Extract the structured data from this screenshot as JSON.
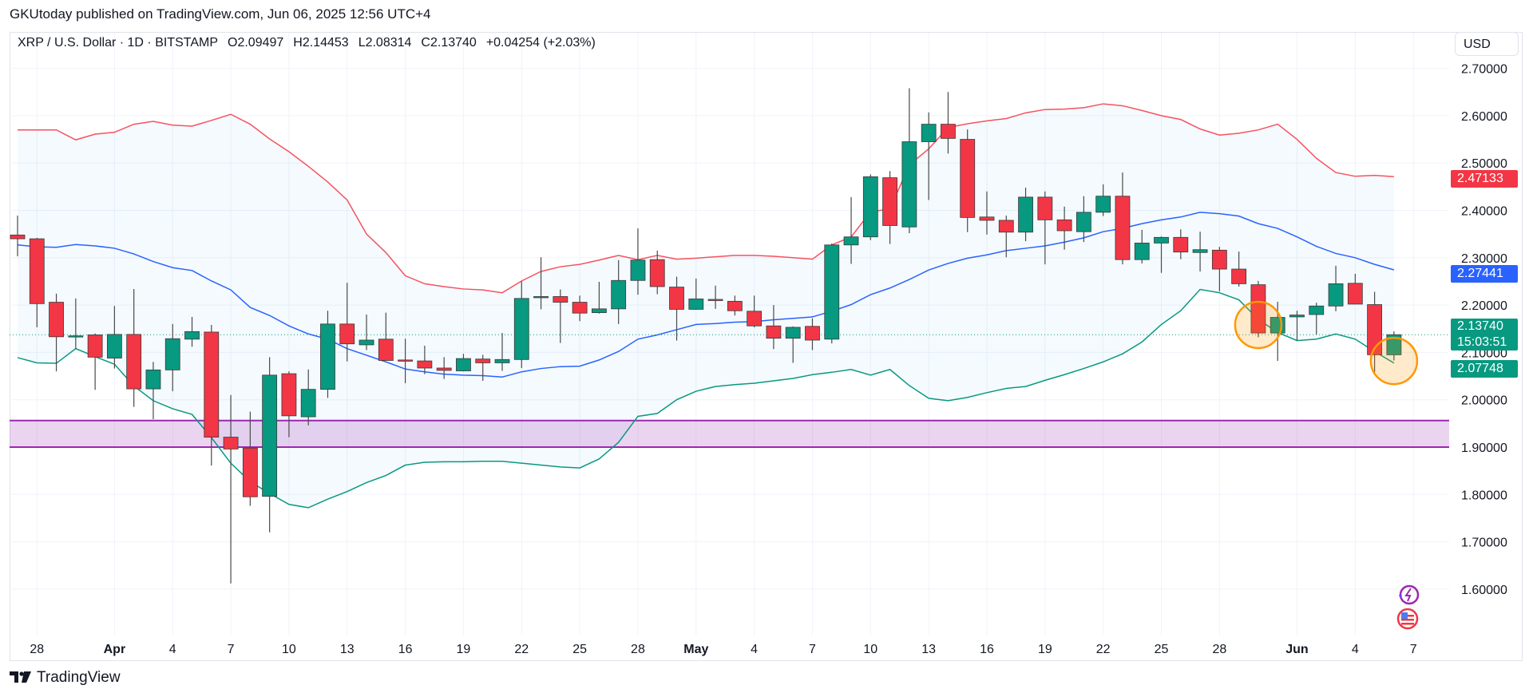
{
  "publish_line": "GKUtoday published on TradingView.com, Jun 06, 2025 12:56 UTC+4",
  "legend": {
    "symbol": "XRP / U.S. Dollar · 1D · BITSTAMP",
    "open": "O2.09497",
    "high": "H2.14453",
    "low": "L2.08314",
    "close": "C2.13740",
    "change": "+0.04254 (+2.03%)"
  },
  "currency": "USD",
  "price_labels": {
    "upper_band": "2.47133",
    "middle_band": "2.27441",
    "last_price": "2.13740",
    "countdown": "15:03:51",
    "lower_band": "2.07748"
  },
  "footer_logo": "TradingView",
  "icons": [
    "lightning-sparkle-icon",
    "us-flag-icon",
    "tradingview-logo-icon"
  ],
  "colors": {
    "up": "#089981",
    "down": "#f23645",
    "upper_band": "#f7525f",
    "middle_band": "#2962ff",
    "lower_band": "#089981",
    "zone": "#9c27b0",
    "highlight": "#ff9800",
    "band_fill": "#2196f3"
  },
  "chart_data": {
    "type": "candlestick",
    "y_ticks": [
      "1.60000",
      "1.70000",
      "1.80000",
      "1.90000",
      "2.00000",
      "2.10000",
      "2.20000",
      "2.30000",
      "2.40000",
      "2.50000",
      "2.60000",
      "2.70000"
    ],
    "ylim": [
      1.5,
      2.75
    ],
    "grid": true,
    "x_ticks": [
      {
        "label": "28",
        "date": "2025-03-28"
      },
      {
        "label": "Apr",
        "date": "2025-04-01",
        "bold": true
      },
      {
        "label": "4",
        "date": "2025-04-04"
      },
      {
        "label": "7",
        "date": "2025-04-07"
      },
      {
        "label": "10",
        "date": "2025-04-10"
      },
      {
        "label": "13",
        "date": "2025-04-13"
      },
      {
        "label": "16",
        "date": "2025-04-16"
      },
      {
        "label": "19",
        "date": "2025-04-19"
      },
      {
        "label": "22",
        "date": "2025-04-22"
      },
      {
        "label": "25",
        "date": "2025-04-25"
      },
      {
        "label": "28",
        "date": "2025-04-28"
      },
      {
        "label": "May",
        "date": "2025-05-01",
        "bold": true
      },
      {
        "label": "4",
        "date": "2025-05-04"
      },
      {
        "label": "7",
        "date": "2025-05-07"
      },
      {
        "label": "10",
        "date": "2025-05-10"
      },
      {
        "label": "13",
        "date": "2025-05-13"
      },
      {
        "label": "16",
        "date": "2025-05-16"
      },
      {
        "label": "19",
        "date": "2025-05-19"
      },
      {
        "label": "22",
        "date": "2025-05-22"
      },
      {
        "label": "25",
        "date": "2025-05-25"
      },
      {
        "label": "28",
        "date": "2025-05-28"
      },
      {
        "label": "Jun",
        "date": "2025-06-01",
        "bold": true
      },
      {
        "label": "4",
        "date": "2025-06-04"
      },
      {
        "label": "7",
        "date": "2025-06-07"
      }
    ],
    "first_date": "2025-03-27",
    "ohlc": [
      [
        2.348,
        2.389,
        2.303,
        2.34
      ],
      [
        2.34,
        2.342,
        2.153,
        2.203
      ],
      [
        2.206,
        2.224,
        2.06,
        2.133
      ],
      [
        2.134,
        2.214,
        2.108,
        2.135
      ],
      [
        2.137,
        2.14,
        2.021,
        2.09
      ],
      [
        2.088,
        2.198,
        2.066,
        2.138
      ],
      [
        2.138,
        2.234,
        1.985,
        2.023
      ],
      [
        2.023,
        2.08,
        1.959,
        2.063
      ],
      [
        2.063,
        2.16,
        2.018,
        2.129
      ],
      [
        2.128,
        2.175,
        2.112,
        2.144
      ],
      [
        2.143,
        2.158,
        1.861,
        1.921
      ],
      [
        1.921,
        2.01,
        1.612,
        1.896
      ],
      [
        1.898,
        1.975,
        1.776,
        1.795
      ],
      [
        1.796,
        2.09,
        1.72,
        2.052
      ],
      [
        2.055,
        2.06,
        1.921,
        1.966
      ],
      [
        1.964,
        2.064,
        1.946,
        2.022
      ],
      [
        2.022,
        2.188,
        2.004,
        2.16
      ],
      [
        2.16,
        2.247,
        2.081,
        2.118
      ],
      [
        2.116,
        2.18,
        2.105,
        2.126
      ],
      [
        2.128,
        2.184,
        2.083,
        2.083
      ],
      [
        2.084,
        2.129,
        2.035,
        2.083
      ],
      [
        2.082,
        2.114,
        2.054,
        2.067
      ],
      [
        2.067,
        2.09,
        2.044,
        2.062
      ],
      [
        2.061,
        2.097,
        2.06,
        2.087
      ],
      [
        2.086,
        2.095,
        2.04,
        2.078
      ],
      [
        2.078,
        2.141,
        2.061,
        2.085
      ],
      [
        2.085,
        2.25,
        2.067,
        2.214
      ],
      [
        2.216,
        2.301,
        2.191,
        2.218
      ],
      [
        2.218,
        2.233,
        2.12,
        2.206
      ],
      [
        2.206,
        2.22,
        2.166,
        2.183
      ],
      [
        2.184,
        2.249,
        2.182,
        2.192
      ],
      [
        2.192,
        2.295,
        2.16,
        2.252
      ],
      [
        2.252,
        2.362,
        2.222,
        2.295
      ],
      [
        2.296,
        2.315,
        2.223,
        2.239
      ],
      [
        2.238,
        2.26,
        2.125,
        2.191
      ],
      [
        2.191,
        2.256,
        2.19,
        2.213
      ],
      [
        2.212,
        2.241,
        2.192,
        2.21
      ],
      [
        2.208,
        2.22,
        2.178,
        2.188
      ],
      [
        2.187,
        2.22,
        2.153,
        2.156
      ],
      [
        2.156,
        2.2,
        2.107,
        2.13
      ],
      [
        2.13,
        2.155,
        2.078,
        2.153
      ],
      [
        2.155,
        2.172,
        2.105,
        2.126
      ],
      [
        2.128,
        2.33,
        2.119,
        2.327
      ],
      [
        2.327,
        2.428,
        2.287,
        2.344
      ],
      [
        2.344,
        2.476,
        2.337,
        2.471
      ],
      [
        2.469,
        2.483,
        2.329,
        2.368
      ],
      [
        2.365,
        2.658,
        2.352,
        2.545
      ],
      [
        2.545,
        2.607,
        2.422,
        2.582
      ],
      [
        2.582,
        2.65,
        2.52,
        2.552
      ],
      [
        2.55,
        2.571,
        2.354,
        2.385
      ],
      [
        2.386,
        2.44,
        2.349,
        2.379
      ],
      [
        2.379,
        2.389,
        2.301,
        2.354
      ],
      [
        2.354,
        2.448,
        2.335,
        2.428
      ],
      [
        2.428,
        2.44,
        2.286,
        2.38
      ],
      [
        2.38,
        2.408,
        2.317,
        2.357
      ],
      [
        2.355,
        2.43,
        2.333,
        2.396
      ],
      [
        2.396,
        2.455,
        2.388,
        2.43
      ],
      [
        2.43,
        2.48,
        2.286,
        2.296
      ],
      [
        2.296,
        2.359,
        2.288,
        2.331
      ],
      [
        2.331,
        2.345,
        2.268,
        2.343
      ],
      [
        2.343,
        2.36,
        2.297,
        2.312
      ],
      [
        2.311,
        2.355,
        2.271,
        2.317
      ],
      [
        2.316,
        2.323,
        2.229,
        2.276
      ],
      [
        2.276,
        2.313,
        2.239,
        2.245
      ],
      [
        2.243,
        2.251,
        2.132,
        2.141
      ],
      [
        2.141,
        2.207,
        2.082,
        2.174
      ],
      [
        2.175,
        2.188,
        2.125,
        2.179
      ],
      [
        2.18,
        2.205,
        2.138,
        2.198
      ],
      [
        2.198,
        2.283,
        2.187,
        2.245
      ],
      [
        2.246,
        2.266,
        2.202,
        2.202
      ],
      [
        2.201,
        2.228,
        2.059,
        2.095
      ],
      [
        2.09497,
        2.14453,
        2.08314,
        2.1374
      ]
    ],
    "bollinger": {
      "upper": [
        2.57,
        2.57,
        2.57,
        2.549,
        2.561,
        2.565,
        2.582,
        2.588,
        2.58,
        2.578,
        2.59,
        2.603,
        2.582,
        2.551,
        2.524,
        2.493,
        2.46,
        2.422,
        2.35,
        2.311,
        2.262,
        2.245,
        2.239,
        2.234,
        2.232,
        2.226,
        2.251,
        2.271,
        2.281,
        2.286,
        2.295,
        2.305,
        2.296,
        2.305,
        2.297,
        2.299,
        2.302,
        2.305,
        2.305,
        2.303,
        2.3,
        2.297,
        2.327,
        2.344,
        2.397,
        2.403,
        2.496,
        2.53,
        2.575,
        2.583,
        2.589,
        2.594,
        2.606,
        2.613,
        2.614,
        2.617,
        2.625,
        2.621,
        2.611,
        2.6,
        2.592,
        2.572,
        2.559,
        2.563,
        2.57,
        2.582,
        2.55,
        2.51,
        2.48,
        2.472,
        2.474,
        2.47133
      ],
      "middle": [
        2.327,
        2.323,
        2.322,
        2.328,
        2.325,
        2.32,
        2.308,
        2.292,
        2.279,
        2.273,
        2.251,
        2.232,
        2.195,
        2.178,
        2.156,
        2.139,
        2.128,
        2.108,
        2.094,
        2.08,
        2.065,
        2.059,
        2.054,
        2.052,
        2.051,
        2.048,
        2.059,
        2.066,
        2.07,
        2.071,
        2.084,
        2.102,
        2.128,
        2.137,
        2.148,
        2.159,
        2.161,
        2.164,
        2.165,
        2.169,
        2.172,
        2.175,
        2.187,
        2.201,
        2.222,
        2.236,
        2.254,
        2.274,
        2.288,
        2.299,
        2.306,
        2.315,
        2.32,
        2.325,
        2.333,
        2.342,
        2.355,
        2.362,
        2.372,
        2.38,
        2.386,
        2.396,
        2.393,
        2.388,
        2.372,
        2.362,
        2.344,
        2.324,
        2.309,
        2.3,
        2.286,
        2.27441
      ],
      "lower": [
        2.089,
        2.078,
        2.077,
        2.108,
        2.091,
        2.075,
        2.029,
        1.998,
        1.981,
        1.969,
        1.92,
        1.866,
        1.827,
        1.802,
        1.779,
        1.772,
        1.79,
        1.806,
        1.825,
        1.84,
        1.862,
        1.868,
        1.869,
        1.869,
        1.87,
        1.87,
        1.866,
        1.862,
        1.858,
        1.856,
        1.875,
        1.91,
        1.965,
        1.971,
        2.0,
        2.018,
        2.028,
        2.032,
        2.035,
        2.04,
        2.045,
        2.053,
        2.058,
        2.064,
        2.052,
        2.064,
        2.03,
        2.003,
        1.998,
        2.005,
        2.015,
        2.024,
        2.028,
        2.041,
        2.053,
        2.066,
        2.08,
        2.097,
        2.122,
        2.159,
        2.188,
        2.233,
        2.226,
        2.211,
        2.17,
        2.142,
        2.125,
        2.128,
        2.139,
        2.128,
        2.102,
        2.07748
      ]
    },
    "zone": {
      "from": 1.9,
      "to": 1.956
    },
    "annotations": [
      {
        "type": "circle",
        "date": "2025-05-30",
        "price": 2.158
      },
      {
        "type": "circle",
        "date": "2025-06-06",
        "price": 2.082
      }
    ]
  }
}
